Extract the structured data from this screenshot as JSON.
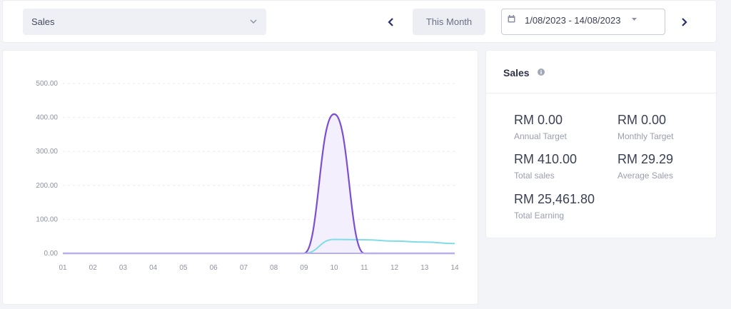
{
  "toolbar": {
    "metric_select": "Sales",
    "this_month": "This Month",
    "date_range": "1/08/2023 - 14/08/2023"
  },
  "chart_data": {
    "type": "area",
    "x": [
      "01",
      "02",
      "03",
      "04",
      "05",
      "06",
      "07",
      "08",
      "09",
      "10",
      "11",
      "12",
      "13",
      "14"
    ],
    "yticks": [
      "500.00",
      "400.00",
      "300.00",
      "200.00",
      "100.00",
      "0.00"
    ],
    "ylim": [
      0,
      500
    ],
    "series": [
      {
        "values": [
          0,
          0,
          0,
          0,
          0,
          0,
          0,
          0,
          0,
          410,
          0,
          0,
          0,
          0
        ],
        "color": "#7b4fd0",
        "fill": "#f3effc"
      },
      {
        "values": [
          0,
          0,
          0,
          0,
          0,
          0,
          0,
          0,
          0,
          41,
          40,
          36,
          33,
          29
        ],
        "color": "#7fdde8"
      }
    ],
    "grid": true
  },
  "sales_panel": {
    "title": "Sales",
    "stats": [
      {
        "value": "RM 0.00",
        "label": "Annual Target"
      },
      {
        "value": "RM 0.00",
        "label": "Monthly Target"
      },
      {
        "value": "RM 410.00",
        "label": "Total sales"
      },
      {
        "value": "RM 29.29",
        "label": "Average Sales"
      },
      {
        "value": "RM 25,461.80",
        "label": "Total Earning"
      }
    ]
  },
  "icons": {
    "select": "chevron-down-icon",
    "prev": "chevron-left-icon",
    "next": "chevron-right-icon",
    "calendar": "calendar-icon",
    "caret": "caret-down-icon",
    "info": "info-icon"
  },
  "colors": {
    "accent": "#7b4fd0",
    "secondary_line": "#7fdde8",
    "card_bg": "#ffffff",
    "page_bg": "#f3f4f7"
  }
}
